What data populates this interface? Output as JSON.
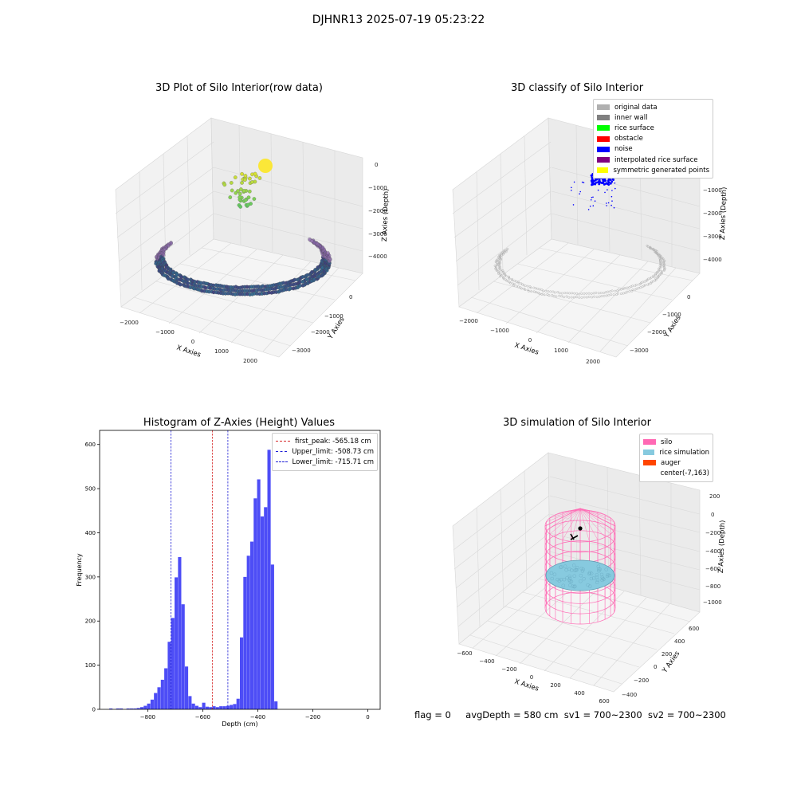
{
  "suptitle": "DJHNR13 2025-07-19 05:23:22",
  "status": {
    "flag": "flag = 0",
    "avg_depth": "avgDepth = 580 cm",
    "sv1": "sv1 = 700~2300",
    "sv2": "sv2 = 700~2300"
  },
  "colors": {
    "hist_bar": "#4d4df6",
    "peak_line": "#d62728",
    "limit_line": "#1f1fd6",
    "silo": "#ff69b4",
    "rice": "#87cadf",
    "auger": "#ff4500",
    "rice_surface": "#00ff00",
    "obstacle": "#ff0000",
    "noise": "#0000ff",
    "interp": "#800080",
    "symmetric": "#ffff00",
    "original": "#b0b0b0",
    "inner_wall": "#808080"
  },
  "chart_data": [
    {
      "type": "scatter",
      "projection": "3d",
      "title": "3D Plot of Silo Interior(row data)",
      "xlabel": "X Axies",
      "ylabel": "Y Axies",
      "zlabel": "Z Axies (Depth)",
      "x_ticks": [
        "−2000",
        "−1000",
        "0",
        "1000",
        "2000"
      ],
      "y_ticks": [
        "0",
        "−1000",
        "−2000",
        "−3000"
      ],
      "z_ticks": [
        "0",
        "−1000",
        "−2000",
        "−3000",
        "−4000"
      ],
      "colormap": "viridis",
      "grid": true
    },
    {
      "type": "scatter",
      "projection": "3d",
      "title": "3D classify of Silo Interior",
      "zlabel": "Z Axies (Depth)",
      "xlabel": "X Axies",
      "ylabel": "Y Axies",
      "x_ticks": [
        "−2000",
        "−1000",
        "0",
        "1000",
        "2000"
      ],
      "y_ticks": [
        "0",
        "−1000",
        "−2000",
        "−3000"
      ],
      "z_ticks": [
        "0",
        "−1000",
        "−2000",
        "−3000",
        "−4000"
      ],
      "legend_position": "top-right",
      "legend": [
        {
          "label": "original data",
          "color": "#b0b0b0"
        },
        {
          "label": "inner wall",
          "color": "#808080"
        },
        {
          "label": "rice surface",
          "color": "#00ff00"
        },
        {
          "label": "obstacle",
          "color": "#ff0000"
        },
        {
          "label": "noise",
          "color": "#0000ff"
        },
        {
          "label": "interpolated rice surface",
          "color": "#800080"
        },
        {
          "label": "symmetric generated points",
          "color": "#ffff00"
        }
      ],
      "grid": true
    },
    {
      "type": "bar",
      "subtype": "histogram",
      "title": "Histogram of Z-Axies (Height) Values",
      "xlabel": "Depth (cm)",
      "ylabel": "Frequency",
      "xlim": [
        -975,
        45
      ],
      "ylim": [
        0,
        632
      ],
      "x_ticks": [
        -800,
        -600,
        -400,
        -200,
        0
      ],
      "x_tick_labels": [
        "−800",
        "−600",
        "−400",
        "−200",
        "0"
      ],
      "y_ticks": [
        0,
        100,
        200,
        300,
        400,
        500,
        600
      ],
      "bin_edges_start": -940,
      "bin_width": 12.5,
      "values": [
        2,
        0,
        2,
        2,
        0,
        2,
        2,
        2,
        3,
        5,
        8,
        13,
        22,
        37,
        50,
        67,
        93,
        153,
        207,
        299,
        345,
        238,
        97,
        30,
        13,
        8,
        5,
        15,
        6,
        5,
        7,
        5,
        7,
        7,
        8,
        10,
        12,
        24,
        163,
        300,
        348,
        380,
        478,
        521,
        437,
        458,
        588,
        328,
        18
      ],
      "lines": [
        {
          "name": "first_peak: -565.18 cm",
          "x": -565.18,
          "style": "dashed",
          "color": "#d62728"
        },
        {
          "name": "Upper_limit: -508.73 cm",
          "x": -508.73,
          "style": "dashed",
          "color": "#1f1fd6"
        },
        {
          "name": "Lower_limit: -715.71 cm",
          "x": -715.71,
          "style": "dashed",
          "color": "#1f1fd6"
        }
      ],
      "legend_position": "top-right"
    },
    {
      "type": "scatter",
      "projection": "3d",
      "title": "3D simulation of Silo Interior",
      "xlabel": "X Axies",
      "ylabel": "Y Axies",
      "zlabel": "Z Axies (Depth)",
      "x_ticks": [
        "−600",
        "−400",
        "−200",
        "0",
        "200",
        "400",
        "600"
      ],
      "y_ticks": [
        "600",
        "400",
        "200",
        "0",
        "−200",
        "−400"
      ],
      "z_ticks": [
        "200",
        "0",
        "−200",
        "−400",
        "−600",
        "−800",
        "−1000"
      ],
      "legend_position": "top-right",
      "legend": [
        {
          "label": "silo",
          "color": "#ff69b4"
        },
        {
          "label": "rice simulation",
          "color": "#87cadf"
        },
        {
          "label": "auger",
          "color": "#ff4500"
        },
        {
          "label": "center(-7,163)",
          "color": ""
        }
      ],
      "grid": true
    }
  ]
}
